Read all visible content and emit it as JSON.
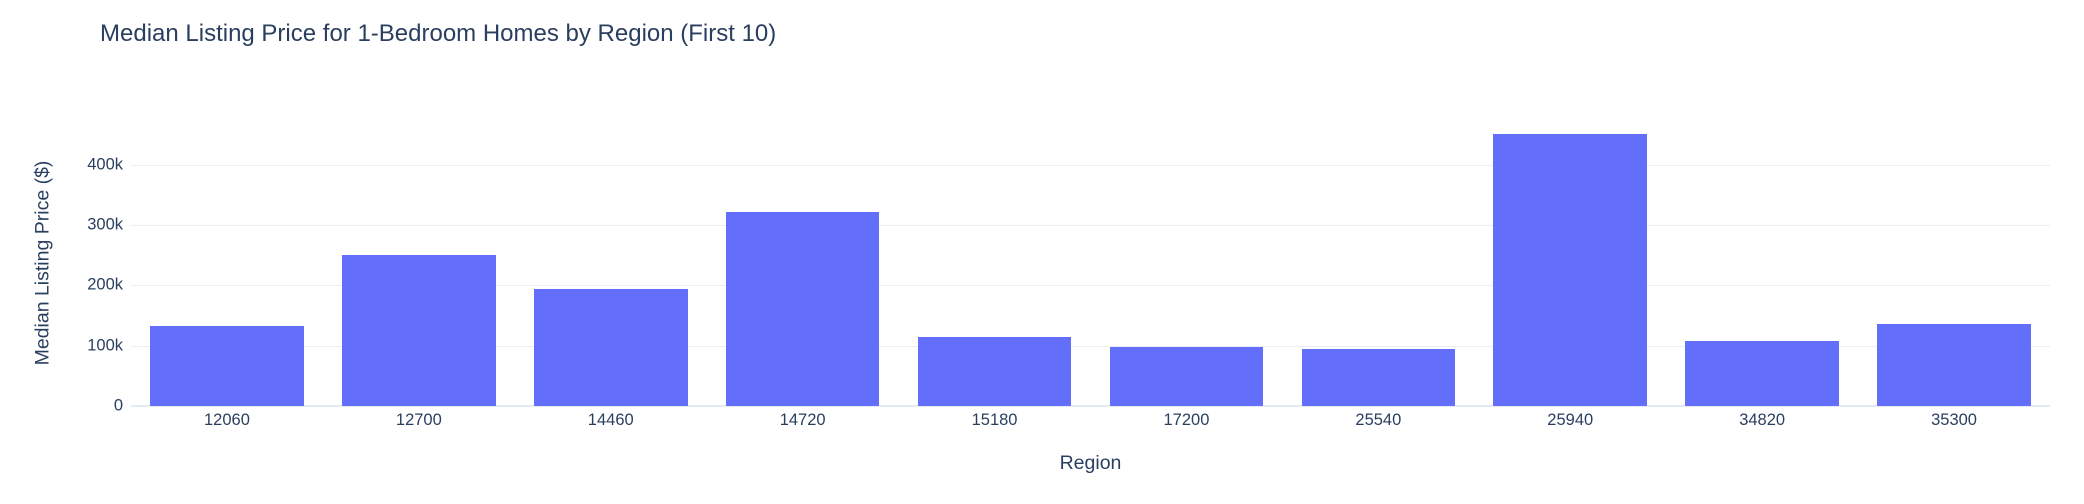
{
  "chart_data": {
    "type": "bar",
    "title": "Median Listing Price for 1-Bedroom Homes by Region (First 10)",
    "xlabel": "Region",
    "ylabel": "Median Listing Price ($)",
    "categories": [
      "12060",
      "12700",
      "14460",
      "14720",
      "15180",
      "17200",
      "25540",
      "25940",
      "34820",
      "35300"
    ],
    "values": [
      133000,
      250000,
      194000,
      322000,
      115000,
      98000,
      94000,
      450000,
      108000,
      136000
    ],
    "ylim": [
      0,
      474000
    ],
    "yticks": [
      {
        "value": 0,
        "label": "0"
      },
      {
        "value": 100000,
        "label": "100k"
      },
      {
        "value": 200000,
        "label": "200k"
      },
      {
        "value": 300000,
        "label": "300k"
      },
      {
        "value": 400000,
        "label": "400k"
      }
    ],
    "grid": true,
    "legend_position": "none",
    "bar_color": "#636EFA",
    "text_color": "#2a3f5f",
    "grid_color": "#e9eef7",
    "background_color": "#ffffff"
  }
}
